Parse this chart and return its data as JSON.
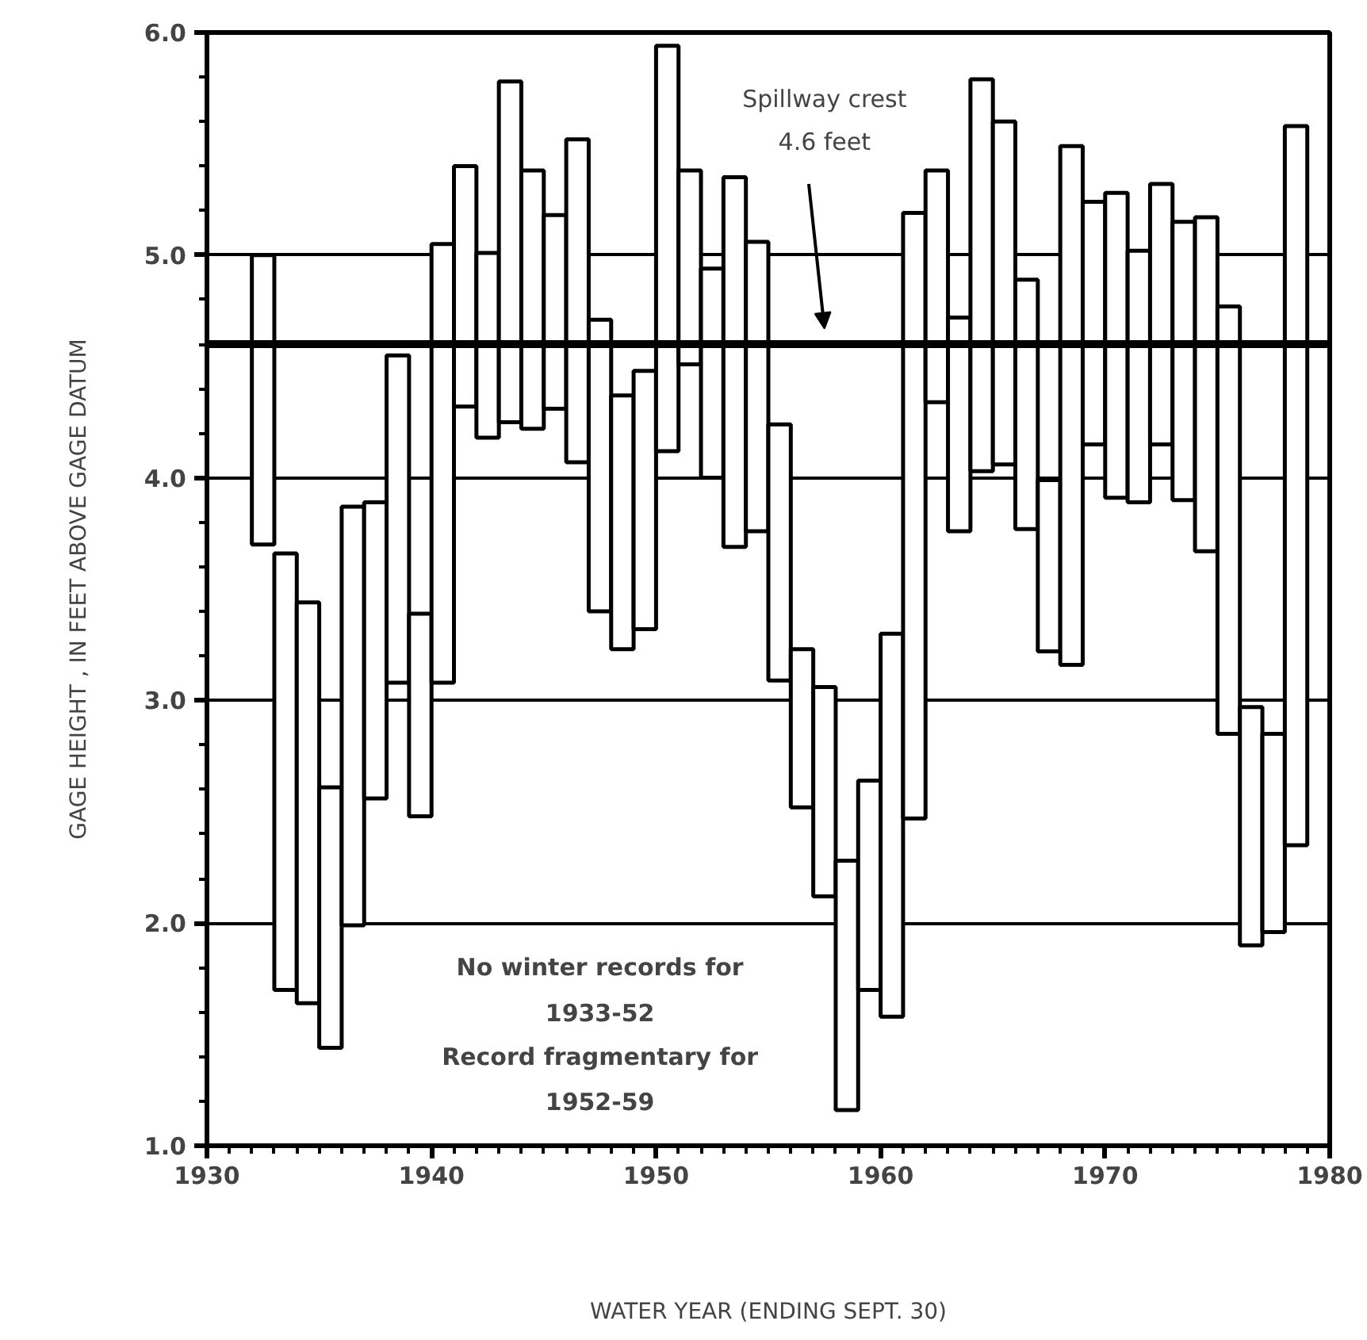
{
  "chart_data": {
    "type": "bar",
    "xlabel": "WATER YEAR (ENDING SEPT. 30)",
    "ylabel": "GAGE HEIGHT , IN FEET ABOVE GAGE DATUM",
    "x": [
      1932.5,
      1933.5,
      1934.5,
      1935.5,
      1936.5,
      1937.5,
      1938.5,
      1939.5,
      1940.5,
      1941.5,
      1942.5,
      1943.5,
      1944.5,
      1945.5,
      1946.5,
      1947.5,
      1948.5,
      1949.5,
      1950.5,
      1951.5,
      1952.5,
      1953.5,
      1954.5,
      1955.5,
      1956.5,
      1957.5,
      1958.5,
      1959.5,
      1960.5,
      1961.5,
      1962.5,
      1963.5,
      1964.5,
      1965.5,
      1966.5,
      1967.5,
      1968.5,
      1969.5,
      1970.5,
      1971.5,
      1972.5,
      1973.5,
      1974.5,
      1975.5,
      1976.5,
      1977.5,
      1978.5
    ],
    "base": [
      3.7,
      1.7,
      1.64,
      1.44,
      1.99,
      2.56,
      3.08,
      2.48,
      3.08,
      4.32,
      4.18,
      4.25,
      4.22,
      4.31,
      4.07,
      3.4,
      3.23,
      3.32,
      4.12,
      4.51,
      4.0,
      3.69,
      3.76,
      3.09,
      2.52,
      2.12,
      1.16,
      1.7,
      1.58,
      2.47,
      4.34,
      3.76,
      4.03,
      4.06,
      3.77,
      3.22,
      3.16,
      4.15,
      3.91,
      3.89,
      4.15,
      3.9,
      3.67,
      2.85,
      1.9,
      1.96,
      2.35
    ],
    "values": [
      1.3,
      1.96,
      1.8,
      1.17,
      1.88,
      1.33,
      1.47,
      0.91,
      1.97,
      1.08,
      0.83,
      1.53,
      1.16,
      0.87,
      1.45,
      1.31,
      1.14,
      1.16,
      1.82,
      0.87,
      0.94,
      1.66,
      1.3,
      1.15,
      0.71,
      0.94,
      1.12,
      0.94,
      1.72,
      2.72,
      1.04,
      0.96,
      1.76,
      1.54,
      1.12,
      0.77,
      2.33,
      1.09,
      1.37,
      1.13,
      1.17,
      1.25,
      1.5,
      1.92,
      1.07,
      0.89,
      3.23
    ],
    "color": "#000000",
    "xlim": [
      1930,
      1980
    ],
    "ylim": [
      1.0,
      6.0
    ],
    "xticks": [
      1930,
      {
        "value": 1931,
        "label": null
      },
      {
        "value": 1932,
        "label": null
      },
      {
        "value": 1933,
        "label": null
      },
      {
        "value": 1934,
        "label": null
      },
      {
        "value": 1935,
        "label": null
      },
      {
        "value": 1936,
        "label": null
      },
      {
        "value": 1937,
        "label": null
      },
      {
        "value": 1938,
        "label": null
      },
      {
        "value": 1939,
        "label": null
      },
      1940,
      {
        "value": 1941,
        "label": null
      },
      {
        "value": 1942,
        "label": null
      },
      {
        "value": 1943,
        "label": null
      },
      {
        "value": 1944,
        "label": null
      },
      {
        "value": 1945,
        "label": null
      },
      {
        "value": 1946,
        "label": null
      },
      {
        "value": 1947,
        "label": null
      },
      {
        "value": 1948,
        "label": null
      },
      {
        "value": 1949,
        "label": null
      },
      1950,
      {
        "value": 1951,
        "label": null
      },
      {
        "value": 1952,
        "label": null
      },
      {
        "value": 1953,
        "label": null
      },
      {
        "value": 1954,
        "label": null
      },
      {
        "value": 1955,
        "label": null
      },
      {
        "value": 1956,
        "label": null
      },
      {
        "value": 1957,
        "label": null
      },
      {
        "value": 1958,
        "label": null
      },
      {
        "value": 1959,
        "label": null
      },
      1960,
      {
        "value": 1961,
        "label": null
      },
      {
        "value": 1962,
        "label": null
      },
      {
        "value": 1963,
        "label": null
      },
      {
        "value": 1964,
        "label": null
      },
      {
        "value": 1965,
        "label": null
      },
      {
        "value": 1966,
        "label": null
      },
      {
        "value": 1967,
        "label": null
      },
      {
        "value": 1968,
        "label": null
      },
      {
        "value": 1969,
        "label": null
      },
      1970,
      {
        "value": 1971,
        "label": null
      },
      {
        "value": 1972,
        "label": null
      },
      {
        "value": 1973,
        "label": null
      },
      {
        "value": 1974,
        "label": null
      },
      {
        "value": 1975,
        "label": null
      },
      {
        "value": 1976,
        "label": null
      },
      {
        "value": 1977,
        "label": null
      },
      {
        "value": 1978,
        "label": null
      },
      {
        "value": 1979,
        "label": null
      },
      1980
    ],
    "yticks": [
      {
        "value": 1.0,
        "label": "1.0"
      },
      {
        "value": 1.2,
        "label": null
      },
      {
        "value": 1.4,
        "label": null
      },
      {
        "value": 1.6,
        "label": null
      },
      {
        "value": 1.8,
        "label": null
      },
      {
        "value": 2.0,
        "label": "2.0"
      },
      {
        "value": 2.2,
        "label": null
      },
      {
        "value": 2.4,
        "label": null
      },
      {
        "value": 2.6,
        "label": null
      },
      {
        "value": 2.8,
        "label": null
      },
      {
        "value": 3.0,
        "label": "3.0"
      },
      {
        "value": 3.2,
        "label": null
      },
      {
        "value": 3.4,
        "label": null
      },
      {
        "value": 3.6,
        "label": null
      },
      {
        "value": 3.8,
        "label": null
      },
      {
        "value": 4.0,
        "label": "4.0"
      },
      {
        "value": 4.2,
        "label": null
      },
      {
        "value": 4.4,
        "label": null
      },
      {
        "value": 4.6,
        "label": null
      },
      {
        "value": 4.8,
        "label": null
      },
      {
        "value": 5.0,
        "label": "5.0"
      },
      {
        "value": 5.2,
        "label": null
      },
      {
        "value": 5.4,
        "label": null
      },
      {
        "value": 5.6,
        "label": null
      },
      {
        "value": 5.8,
        "label": null
      },
      {
        "value": 6.0,
        "label": "6.0"
      }
    ],
    "grid": "y",
    "ref_lines": [
      {
        "axis": "y",
        "value": 4.6,
        "label": "Spillway crest\n4.6 feet",
        "color": "#000000"
      }
    ],
    "annotations": [
      "No winter records for\n1933-52\nRecord fragmentary for\n1952-59"
    ]
  }
}
